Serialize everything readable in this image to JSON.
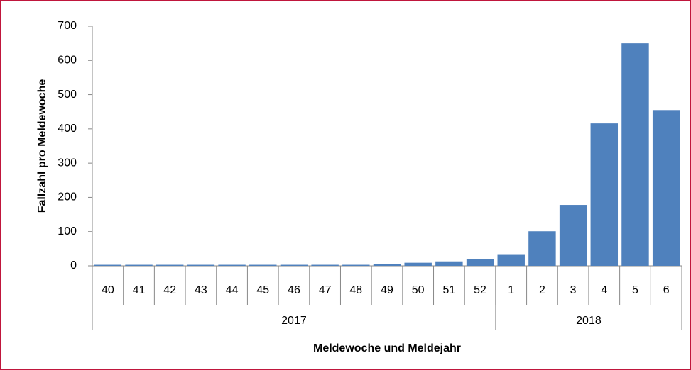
{
  "chart_data": {
    "type": "bar",
    "y_axis_label": "Fallzahl pro Meldewoche",
    "x_axis_label": "Meldewoche und Meldejahr",
    "category_groups": [
      {
        "label": "2017",
        "categories": [
          "40",
          "41",
          "42",
          "43",
          "44",
          "45",
          "46",
          "47",
          "48",
          "49",
          "50",
          "51",
          "52"
        ]
      },
      {
        "label": "2018",
        "categories": [
          "1",
          "2",
          "3",
          "4",
          "5",
          "6"
        ]
      }
    ],
    "values": [
      3,
      3,
      3,
      3,
      3,
      3,
      3,
      3,
      3,
      6,
      9,
      13,
      19,
      32,
      101,
      178,
      416,
      650,
      455
    ],
    "color": "#4f81bd",
    "ylim": [
      0,
      700
    ],
    "yticks": [
      0,
      100,
      200,
      300,
      400,
      500,
      600,
      700
    ]
  }
}
